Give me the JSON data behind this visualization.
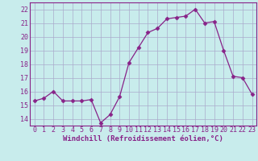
{
  "x": [
    0,
    1,
    2,
    3,
    4,
    5,
    6,
    7,
    8,
    9,
    10,
    11,
    12,
    13,
    14,
    15,
    16,
    17,
    18,
    19,
    20,
    21,
    22,
    23
  ],
  "y": [
    15.3,
    15.5,
    16.0,
    15.3,
    15.3,
    15.3,
    15.4,
    13.7,
    14.3,
    15.6,
    18.1,
    19.2,
    20.3,
    20.6,
    21.3,
    21.4,
    21.5,
    22.0,
    21.0,
    21.1,
    19.0,
    17.1,
    17.0,
    15.8
  ],
  "line_color": "#882288",
  "marker": "D",
  "marker_size": 2.5,
  "bg_color": "#c8ecec",
  "grid_color": "#aaaacc",
  "xlabel": "Windchill (Refroidissement éolien,°C)",
  "ylim": [
    13.5,
    22.5
  ],
  "xlim": [
    -0.5,
    23.5
  ],
  "yticks": [
    14,
    15,
    16,
    17,
    18,
    19,
    20,
    21,
    22
  ],
  "xticks": [
    0,
    1,
    2,
    3,
    4,
    5,
    6,
    7,
    8,
    9,
    10,
    11,
    12,
    13,
    14,
    15,
    16,
    17,
    18,
    19,
    20,
    21,
    22,
    23
  ],
  "xlabel_fontsize": 6.5,
  "tick_fontsize": 6.0
}
